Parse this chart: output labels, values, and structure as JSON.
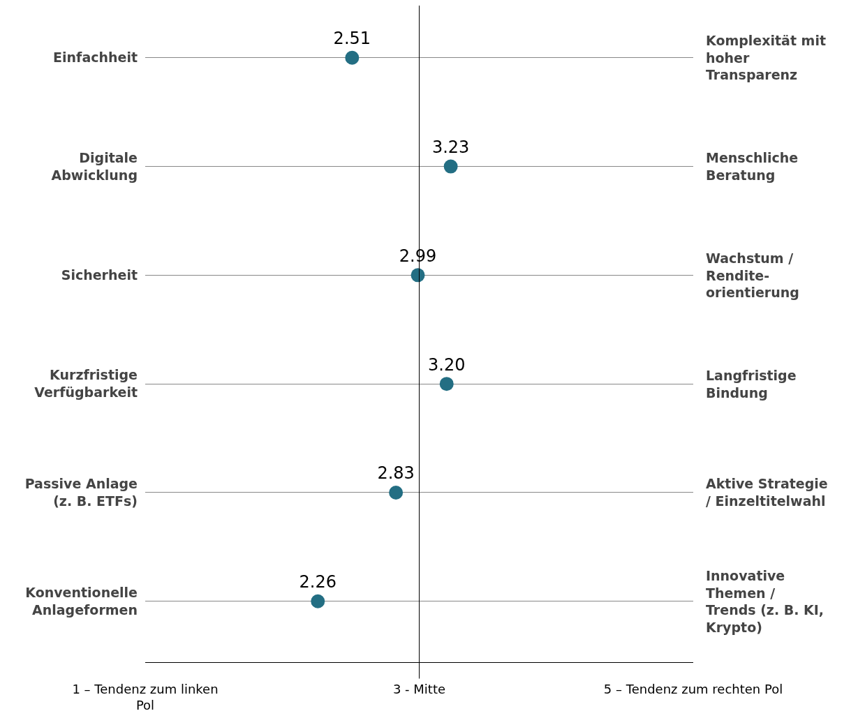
{
  "chart_data": {
    "type": "scatter",
    "orientation": "horizontal",
    "categories": [
      "Einfachheit",
      "Digitale\nAbwicklung",
      "Sicherheit",
      "Kurzfristige\nVerfügbarkeit",
      "Passive Anlage\n(z. B. ETFs)",
      "Konventionelle\nAnlageformen"
    ],
    "y2_categories": [
      "Komplexität mit\nhoher\nTransparenz",
      "Menschliche\nBeratung",
      "Wachstum /\nRendite-\norientierung",
      "Langfristige\nBindung",
      "Aktive Strategie\n/ Einzeltitelwahl",
      "Innovative\nThemen /\nTrends (z. B. KI,\nKrypto)"
    ],
    "series": [
      {
        "color": "#236e83",
        "values": [
          2.51,
          3.23,
          2.99,
          3.2,
          2.83,
          2.26
        ],
        "value_labels": [
          "2.51",
          "3.23",
          "2.99",
          "3.20",
          "2.83",
          "2.26"
        ]
      }
    ],
    "xlim": [
      1,
      5
    ],
    "xticks": [
      {
        "value": 1,
        "label": "1 – Tendenz zum linken\nPol"
      },
      {
        "value": 3,
        "label": "3 - Mitte"
      },
      {
        "value": 5,
        "label": "5 – Tendenz zum rechten Pol"
      }
    ],
    "ref_lines": [
      {
        "axis": "x",
        "value": 3,
        "color": "#000000"
      }
    ],
    "grid": "y",
    "marker": "circle"
  }
}
